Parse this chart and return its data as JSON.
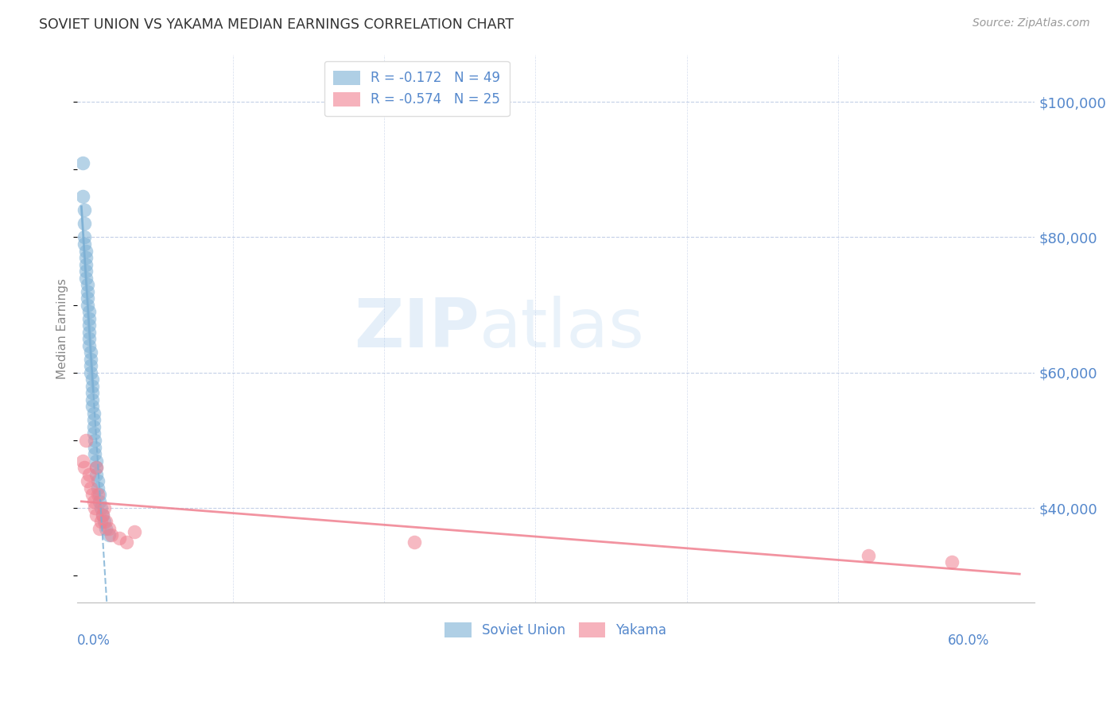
{
  "title": "SOVIET UNION VS YAKAMA MEDIAN EARNINGS CORRELATION CHART",
  "source": "Source: ZipAtlas.com",
  "ylabel": "Median Earnings",
  "ylim": [
    26000,
    107000
  ],
  "xlim": [
    -0.003,
    0.63
  ],
  "yticks": [
    40000,
    60000,
    80000,
    100000
  ],
  "ytick_labels": [
    "$40,000",
    "$60,000",
    "$80,000",
    "$100,000"
  ],
  "xtick_label_left": "0.0%",
  "xtick_label_right": "60.0%",
  "blue_color": "#7BAFD4",
  "pink_color": "#F08090",
  "blue_r": -0.172,
  "blue_n": 49,
  "pink_r": -0.574,
  "pink_n": 25,
  "legend_label_blue": "Soviet Union",
  "legend_label_pink": "Yakama",
  "watermark_zip": "ZIP",
  "watermark_atlas": "atlas",
  "axis_color": "#5588CC",
  "grid_color": "#AABBDD",
  "background_color": "#FFFFFF",
  "blue_x": [
    0.001,
    0.001,
    0.002,
    0.002,
    0.002,
    0.002,
    0.003,
    0.003,
    0.003,
    0.003,
    0.003,
    0.004,
    0.004,
    0.004,
    0.004,
    0.005,
    0.005,
    0.005,
    0.005,
    0.005,
    0.005,
    0.006,
    0.006,
    0.006,
    0.006,
    0.007,
    0.007,
    0.007,
    0.007,
    0.007,
    0.008,
    0.008,
    0.008,
    0.008,
    0.009,
    0.009,
    0.009,
    0.01,
    0.01,
    0.01,
    0.011,
    0.011,
    0.012,
    0.012,
    0.013,
    0.014,
    0.015,
    0.016,
    0.018
  ],
  "blue_y": [
    91000,
    86000,
    84000,
    82000,
    80000,
    79000,
    78000,
    77000,
    76000,
    75000,
    74000,
    73000,
    72000,
    71000,
    70000,
    69000,
    68000,
    67000,
    66000,
    65000,
    64000,
    63000,
    62000,
    61000,
    60000,
    59000,
    58000,
    57000,
    56000,
    55000,
    54000,
    53000,
    52000,
    51000,
    50000,
    49000,
    48000,
    47000,
    46000,
    45000,
    44000,
    43000,
    42000,
    41000,
    40000,
    39000,
    38000,
    37000,
    36000
  ],
  "pink_x": [
    0.001,
    0.002,
    0.003,
    0.004,
    0.005,
    0.006,
    0.007,
    0.008,
    0.009,
    0.01,
    0.01,
    0.011,
    0.012,
    0.013,
    0.014,
    0.015,
    0.016,
    0.018,
    0.02,
    0.025,
    0.03,
    0.035,
    0.22,
    0.52,
    0.575
  ],
  "pink_y": [
    47000,
    46000,
    50000,
    44000,
    45000,
    43000,
    42000,
    41000,
    40000,
    39000,
    46000,
    42000,
    37000,
    38000,
    39000,
    40000,
    38000,
    37000,
    36000,
    35500,
    35000,
    36500,
    35000,
    33000,
    32000
  ]
}
